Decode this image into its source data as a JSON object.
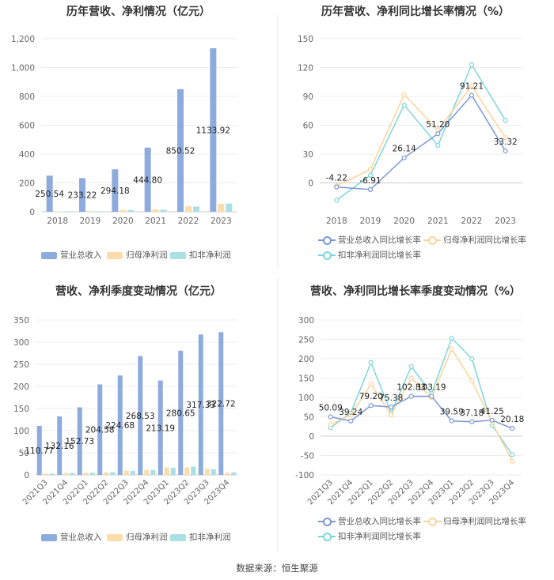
{
  "footer": {
    "source": "数据来源：恒生聚源"
  },
  "chart_data": [
    {
      "id": "annual_revenue",
      "type": "bar",
      "title": "历年营收、净利情况（亿元）",
      "categories": [
        "2018",
        "2019",
        "2020",
        "2021",
        "2022",
        "2023"
      ],
      "ylim": [
        0,
        1200
      ],
      "yticks": [
        "0",
        "200",
        "400",
        "600",
        "800",
        "1,000",
        "1,200"
      ],
      "ytick_values": [
        0,
        200,
        400,
        600,
        800,
        1000,
        1200
      ],
      "series": [
        {
          "name": "营业总收入",
          "color": "#8eabdd",
          "values": [
            250.54,
            233.22,
            294.18,
            444.8,
            850.52,
            1133.92
          ],
          "labels": [
            "250.54",
            "233.22",
            "294.18",
            "444.80",
            "850.52",
            "1133.92"
          ]
        },
        {
          "name": "归母净利润",
          "color": "#fcdcaa",
          "values": [
            3,
            4,
            12,
            16,
            38,
            55
          ]
        },
        {
          "name": "扣非净利润",
          "color": "#a8e0e3",
          "values": [
            2,
            3,
            11,
            15,
            36,
            57
          ]
        }
      ]
    },
    {
      "id": "annual_growth",
      "type": "line",
      "title": "历年营收、净利同比增长率情况（%）",
      "categories": [
        "2018",
        "2019",
        "2020",
        "2021",
        "2022",
        "2023"
      ],
      "ylim": [
        -30,
        150
      ],
      "yticks": [
        "0",
        "30",
        "60",
        "90",
        "120",
        "150"
      ],
      "ytick_values": [
        0,
        30,
        60,
        90,
        120,
        150
      ],
      "series": [
        {
          "name": "营业总收入同比增长率",
          "color": "#7b98d6",
          "values": [
            -4.22,
            -6.91,
            26.14,
            51.2,
            91.21,
            33.32
          ],
          "labels": [
            "-4.22",
            "-6.91",
            "26.14",
            "51.20",
            "91.21",
            "33.32"
          ]
        },
        {
          "name": "归母净利润同比增长率",
          "color": "#fcd49a",
          "values": [
            -3,
            14,
            92,
            55,
            101,
            47
          ]
        },
        {
          "name": "扣非净利润同比增长率",
          "color": "#7dd6da",
          "values": [
            -18,
            8,
            81,
            39,
            123,
            65
          ]
        }
      ]
    },
    {
      "id": "quarterly_revenue",
      "type": "bar",
      "title": "营收、净利季度变动情况（亿元）",
      "categories": [
        "2021Q3",
        "2021Q4",
        "2022Q1",
        "2022Q2",
        "2022Q3",
        "2022Q4",
        "2023Q1",
        "2023Q2",
        "2023Q3",
        "2023Q4"
      ],
      "ylim": [
        0,
        350
      ],
      "yticks": [
        "0",
        "50",
        "100",
        "150",
        "200",
        "250",
        "300",
        "350"
      ],
      "ytick_values": [
        0,
        50,
        100,
        150,
        200,
        250,
        300,
        350
      ],
      "series": [
        {
          "name": "营业总收入",
          "color": "#8eabdd",
          "values": [
            110.77,
            132.16,
            152.73,
            204.58,
            224.68,
            268.53,
            213.19,
            280.65,
            317.33,
            322.72
          ],
          "labels": [
            "110.77",
            "132.16",
            "152.73",
            "204.58",
            "224.68",
            "268.53",
            "213.19",
            "280.65",
            "317.33",
            "322.72"
          ]
        },
        {
          "name": "归母净利润",
          "color": "#fcdcaa",
          "values": [
            3,
            4,
            5,
            6,
            10,
            11,
            17,
            17,
            14,
            5
          ]
        },
        {
          "name": "扣非净利润",
          "color": "#a8e0e3",
          "values": [
            3,
            4,
            5,
            6,
            9,
            11,
            16,
            19,
            13,
            6
          ]
        }
      ]
    },
    {
      "id": "quarterly_growth",
      "type": "line",
      "title": "营收、净利同比增长率季度变动情况（%）",
      "categories": [
        "2021Q3",
        "2021Q4",
        "2022Q1",
        "2022Q2",
        "2022Q3",
        "2022Q4",
        "2023Q1",
        "2023Q2",
        "2023Q3",
        "2023Q4"
      ],
      "ylim": [
        -100,
        300
      ],
      "yticks": [
        "-100",
        "-50",
        "0",
        "50",
        "100",
        "150",
        "200",
        "250",
        "300"
      ],
      "ytick_values": [
        -100,
        -50,
        0,
        50,
        100,
        150,
        200,
        250,
        300
      ],
      "series": [
        {
          "name": "营业总收入同比增长率",
          "color": "#7b98d6",
          "values": [
            50.09,
            39.24,
            79.2,
            75.38,
            102.83,
            103.19,
            39.59,
            37.18,
            41.25,
            20.18
          ],
          "labels": [
            "50.09",
            "39.24",
            "79.20",
            "75.38",
            "102.83",
            "103.19",
            "39.59",
            "37.18",
            "41.25",
            "20.18"
          ]
        },
        {
          "name": "归母净利润同比增长率",
          "color": "#fcd49a",
          "values": [
            30,
            55,
            135,
            55,
            150,
            100,
            225,
            143,
            35,
            -65
          ]
        },
        {
          "name": "扣非净利润同比增长率",
          "color": "#7dd6da",
          "values": [
            22,
            60,
            190,
            60,
            180,
            110,
            253,
            200,
            28,
            -48
          ]
        }
      ]
    }
  ]
}
